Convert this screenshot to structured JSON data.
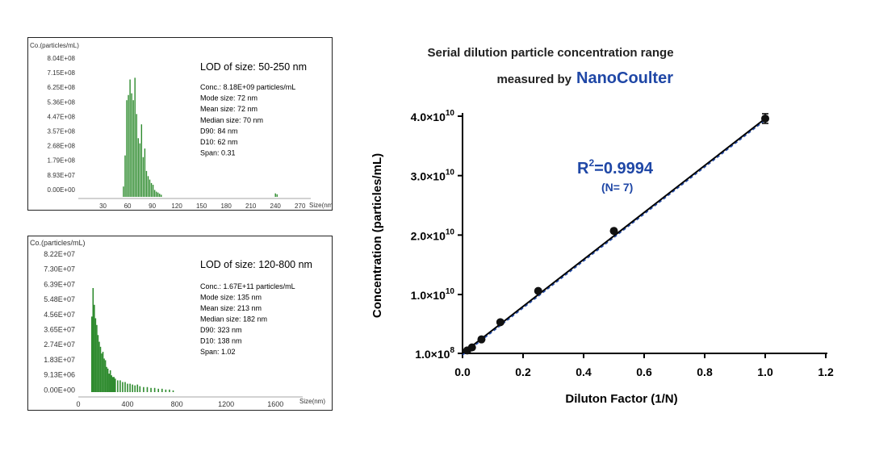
{
  "charts": {
    "hist1": {
      "ylabel": "Co.(particles/mL)",
      "xlabel": "Size(nm)",
      "yticks": [
        "8.04E+08",
        "7.15E+08",
        "6.25E+08",
        "5.36E+08",
        "4.47E+08",
        "3.57E+08",
        "2.68E+08",
        "1.79E+08",
        "8.93E+07",
        "0.00E+00"
      ],
      "xticks": [
        "30",
        "60",
        "90",
        "120",
        "150",
        "180",
        "210",
        "240",
        "270"
      ],
      "lod": "LOD of size: 50-250 nm",
      "stats": [
        "Conc.: 8.18E+09 particles/mL",
        "Mode size: 72 nm",
        "Mean size: 72 nm",
        "Median size: 70 nm",
        "D90: 84 nm",
        "D10: 62 nm",
        "Span: 0.31"
      ]
    },
    "hist2": {
      "ylabel": "Co.(particles/mL)",
      "xlabel": "Size(nm)",
      "yticks": [
        "8.22E+07",
        "7.30E+07",
        "6.39E+07",
        "5.48E+07",
        "4.56E+07",
        "3.65E+07",
        "2.74E+07",
        "1.83E+07",
        "9.13E+06",
        "0.00E+00"
      ],
      "xticks": [
        "0",
        "400",
        "800",
        "1200",
        "1600"
      ],
      "lod": "LOD of size: 120-800 nm",
      "stats": [
        "Conc.: 1.67E+11 particles/mL",
        "Mode size: 135 nm",
        "Mean size: 213 nm",
        "Median size: 182 nm",
        "D90: 323 nm",
        "D10: 138 nm",
        "Span: 1.02"
      ]
    },
    "main": {
      "title_line1": "Serial dilution particle concentration range",
      "title_line2_prefix": "measured by",
      "brand": "NanoCoulter",
      "xlabel": "Diluton Factor (1/N)",
      "ylabel": "Concentration (particles/mL)",
      "r2_label": "R",
      "r2_sup": "2",
      "r2_value": "=0.9994",
      "n_label": "(N= 7)"
    }
  },
  "chart_data": [
    {
      "type": "bar",
      "xlabel": "Size(nm)",
      "ylabel": "Co.(particles/mL)",
      "xlim": [
        0,
        285
      ],
      "ylim": [
        0,
        804000000
      ],
      "x": [
        55,
        57,
        59,
        61,
        63,
        65,
        67,
        69,
        71,
        73,
        75,
        77,
        79,
        81,
        83,
        85,
        87,
        89,
        91,
        93,
        95,
        97,
        99,
        101,
        240,
        242
      ],
      "values": [
        60000000,
        240000000,
        560000000,
        590000000,
        680000000,
        600000000,
        560000000,
        690000000,
        480000000,
        340000000,
        310000000,
        420000000,
        230000000,
        280000000,
        150000000,
        120000000,
        100000000,
        80000000,
        70000000,
        40000000,
        30000000,
        25000000,
        18000000,
        12000000,
        20000000,
        15000000
      ]
    },
    {
      "type": "bar",
      "xlabel": "Size(nm)",
      "ylabel": "Co.(particles/mL)",
      "xlim": [
        0,
        1900
      ],
      "ylim": [
        0,
        82200000
      ],
      "x": [
        110,
        120,
        130,
        140,
        150,
        160,
        170,
        180,
        190,
        200,
        210,
        220,
        230,
        240,
        250,
        260,
        270,
        280,
        290,
        300,
        320,
        340,
        360,
        380,
        400,
        420,
        440,
        460,
        480,
        500,
        530,
        560,
        590,
        620,
        650,
        680,
        710,
        740,
        770
      ],
      "values": [
        45000000,
        62000000,
        52000000,
        44000000,
        40000000,
        34000000,
        30000000,
        27000000,
        23000000,
        24000000,
        20000000,
        19000000,
        15000000,
        14000000,
        11000000,
        13000000,
        10000000,
        9000000,
        9000000,
        8000000,
        7000000,
        7000000,
        6000000,
        6000000,
        5000000,
        5000000,
        4500000,
        4000000,
        4500000,
        3500000,
        3000000,
        3000000,
        2500000,
        2500000,
        2000000,
        2000000,
        1500000,
        1500000,
        1000000
      ]
    },
    {
      "type": "scatter",
      "title": "Serial dilution particle concentration range measured by NanoCoulter",
      "xlabel": "Diluton Factor (1/N)",
      "ylabel": "Concentration (particles/mL)",
      "xlim": [
        0,
        1.2
      ],
      "ylim": [
        100000000,
        40000000000
      ],
      "xticks": [
        "0.0",
        "0.2",
        "0.4",
        "0.6",
        "0.8",
        "1.0",
        "1.2"
      ],
      "yticks": [
        {
          "value": 100000000,
          "mantissa": "1.0",
          "exp": "8"
        },
        {
          "value": 10000000000,
          "mantissa": "1.0",
          "exp": "10"
        },
        {
          "value": 20000000000,
          "mantissa": "2.0",
          "exp": "10"
        },
        {
          "value": 30000000000,
          "mantissa": "3.0",
          "exp": "10"
        },
        {
          "value": 40000000000,
          "mantissa": "4.0",
          "exp": "10"
        }
      ],
      "x": [
        0.0156,
        0.03125,
        0.0625,
        0.125,
        0.25,
        0.5,
        1.0
      ],
      "y": [
        600000000,
        1100000000,
        2450000000,
        5350000000,
        10600000000,
        20700000000,
        39600000000
      ],
      "fit": {
        "slope": 39500000000,
        "intercept": 100000000
      },
      "annotation": "R^2=0.9994 (N= 7)"
    }
  ]
}
